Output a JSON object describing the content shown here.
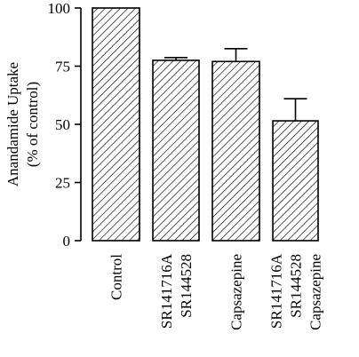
{
  "chart_data": {
    "type": "bar",
    "title": "",
    "xlabel": "",
    "ylabel_lines": [
      "Anandamide Uptake",
      "(% of control)"
    ],
    "ylim": [
      0,
      100
    ],
    "yticks": [
      0,
      25,
      50,
      75,
      100
    ],
    "categories": [
      [
        "Control"
      ],
      [
        "SR141716A",
        "SR144528"
      ],
      [
        "Capsazepine"
      ],
      [
        "SR141716A",
        "SR144528",
        "Capsazepine"
      ]
    ],
    "values": [
      100,
      77.5,
      77,
      51.5
    ],
    "errors": [
      0,
      1.2,
      5.5,
      9.5
    ],
    "fill_pattern": "diagonal-hatch",
    "grid": false,
    "legend": "none"
  }
}
